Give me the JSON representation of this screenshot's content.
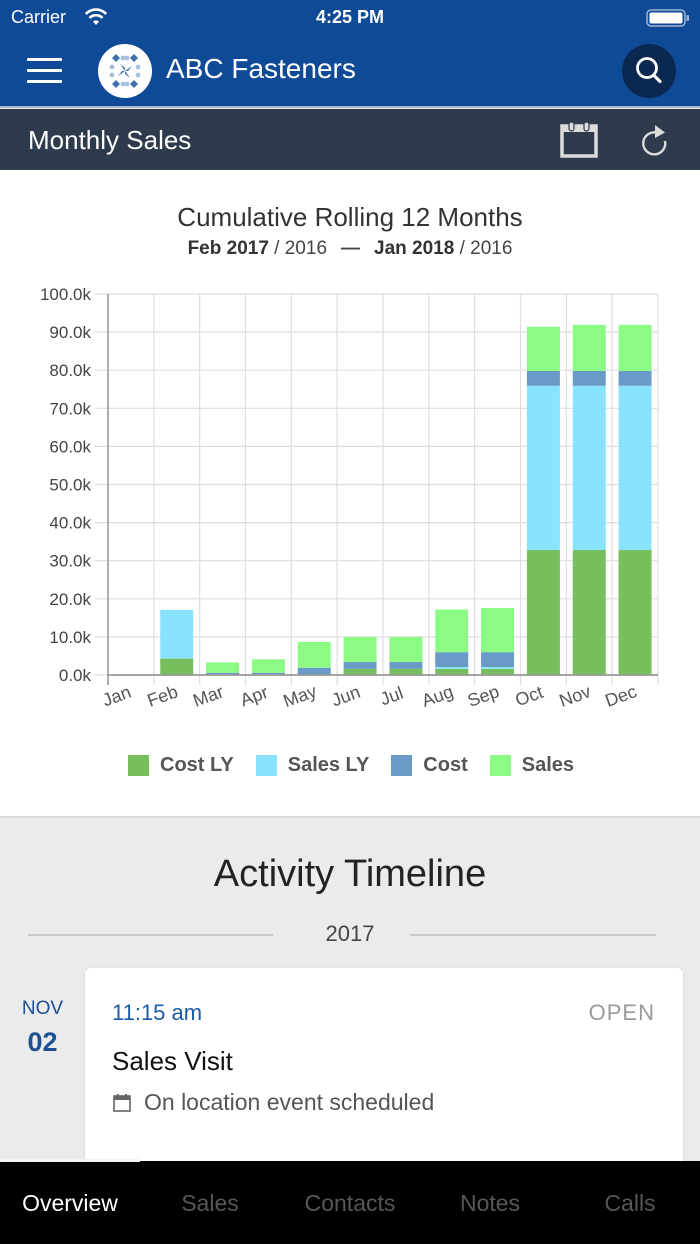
{
  "status_bar": {
    "carrier": "Carrier",
    "time": "4:25 PM",
    "icons": [
      "wifi-icon",
      "battery-icon"
    ]
  },
  "nav": {
    "title": "ABC Fasteners",
    "menu_icon": "hamburger-menu-icon",
    "search_icon": "search-icon",
    "logo": "company-logo"
  },
  "subheader": {
    "title": "Monthly Sales",
    "icons": [
      "calendar-icon",
      "refresh-icon"
    ]
  },
  "chart_section": {
    "title": "Cumulative Rolling 12 Months",
    "range_start_bold": "Feb 2017",
    "range_start_rest": " / 2016",
    "range_sep": "—",
    "range_end_bold": "Jan 2018",
    "range_end_rest": " / 2016"
  },
  "chart_data": {
    "type": "bar",
    "stacked": true,
    "title": "Cumulative Rolling 12 Months",
    "subtitle": "Feb 2017 / 2016 — Jan 2018 / 2016",
    "xlabel": "",
    "ylabel": "",
    "ylim": [
      0,
      100
    ],
    "yunit": "k",
    "yticks": [
      "0.0k",
      "10.0k",
      "20.0k",
      "30.0k",
      "40.0k",
      "50.0k",
      "60.0k",
      "70.0k",
      "80.0k",
      "90.0k",
      "100.0k"
    ],
    "grid": true,
    "legend_position": "bottom",
    "categories": [
      "Jan",
      "Feb",
      "Mar",
      "Apr",
      "May",
      "Jun",
      "Jul",
      "Aug",
      "Sep",
      "Oct",
      "Nov",
      "Dec"
    ],
    "series": [
      {
        "name": "Cost LY",
        "color": "#77be5c",
        "values": [
          0,
          4.3,
          0,
          0,
          0,
          1.6,
          1.6,
          1.6,
          1.6,
          32.8,
          32.8,
          32.8
        ]
      },
      {
        "name": "Sales LY",
        "color": "#89e3ff",
        "values": [
          0,
          12.8,
          0,
          0,
          0,
          0,
          0,
          0.5,
          0.5,
          43.1,
          43.1,
          43.1
        ]
      },
      {
        "name": "Cost",
        "color": "#6a9ac6",
        "values": [
          0,
          0,
          0.6,
          0.6,
          1.9,
          1.8,
          1.8,
          3.9,
          3.9,
          3.9,
          3.9,
          3.9
        ]
      },
      {
        "name": "Sales",
        "color": "#8bfb86",
        "values": [
          0,
          0,
          2.7,
          3.5,
          6.8,
          6.6,
          6.6,
          11.2,
          11.6,
          11.6,
          12.1,
          12.1
        ]
      }
    ]
  },
  "legend": [
    {
      "label": "Cost LY",
      "color": "#77be5c"
    },
    {
      "label": "Sales LY",
      "color": "#89e3ff"
    },
    {
      "label": "Cost",
      "color": "#6a9ac6"
    },
    {
      "label": "Sales",
      "color": "#8bfb86"
    }
  ],
  "timeline": {
    "title": "Activity Timeline",
    "year": "2017",
    "events": [
      {
        "month": "NOV",
        "day": "02",
        "time": "11:15 am",
        "status": "OPEN",
        "name": "Sales Visit",
        "description": "On location event scheduled",
        "icon": "calendar-icon"
      }
    ]
  },
  "tabs": [
    {
      "label": "Overview",
      "active": true
    },
    {
      "label": "Sales",
      "active": false
    },
    {
      "label": "Contacts",
      "active": false
    },
    {
      "label": "Notes",
      "active": false
    },
    {
      "label": "Calls",
      "active": false
    }
  ],
  "colors": {
    "header_blue": "#0f4a96",
    "subheader": "#2d3b4c",
    "search_bg": "#0b2850",
    "accent_blue": "#1c5ba6",
    "timeline_bg": "#ebebeb"
  }
}
